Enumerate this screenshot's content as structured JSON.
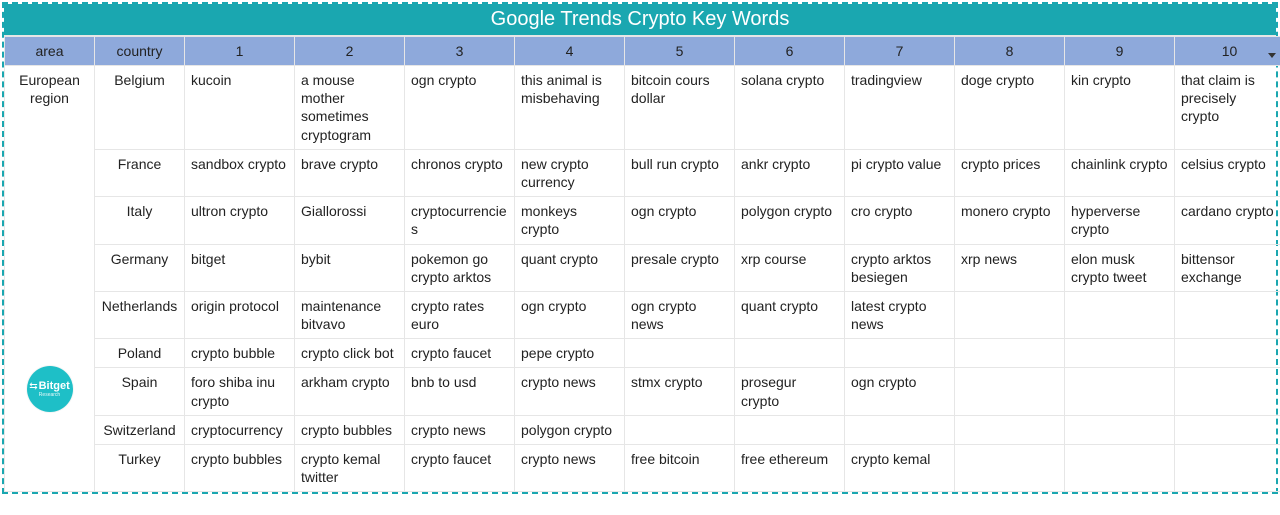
{
  "title": "Google Trends Crypto Key Words",
  "logo": {
    "brand": "Bitget",
    "sub": "Research"
  },
  "sorted_column_index": 11,
  "columns": [
    "area",
    "country",
    "1",
    "2",
    "3",
    "4",
    "5",
    "6",
    "7",
    "8",
    "9",
    "10"
  ],
  "area_label": "European region",
  "rows": [
    {
      "country": "Belgium",
      "kw": [
        "kucoin",
        "a mouse mother sometimes cryptogram",
        "ogn crypto",
        "this animal is misbehaving",
        "bitcoin cours dollar",
        "solana crypto",
        "tradingview",
        "doge crypto",
        "kin crypto",
        "that claim is precisely crypto"
      ]
    },
    {
      "country": "France",
      "kw": [
        "sandbox crypto",
        "brave crypto",
        "chronos crypto",
        "new crypto currency",
        "bull run crypto",
        "ankr crypto",
        "pi crypto value",
        "crypto prices",
        "chainlink crypto",
        "celsius crypto"
      ]
    },
    {
      "country": "Italy",
      "kw": [
        "ultron crypto",
        "Giallorossi",
        "cryptocurrencies",
        "monkeys crypto",
        "ogn crypto",
        "polygon crypto",
        "cro crypto",
        "monero crypto",
        "hyperverse crypto",
        "cardano crypto"
      ]
    },
    {
      "country": "Germany",
      "kw": [
        "bitget",
        "bybit",
        "pokemon go crypto arktos",
        "quant crypto",
        "presale crypto",
        "xrp course",
        "crypto arktos besiegen",
        "xrp news",
        "elon musk crypto tweet",
        "bittensor exchange"
      ]
    },
    {
      "country": "Netherlands",
      "kw": [
        "origin protocol",
        "maintenance bitvavo",
        "crypto rates euro",
        "ogn crypto",
        "ogn crypto news",
        "quant crypto",
        "latest crypto news",
        "",
        "",
        ""
      ]
    },
    {
      "country": "Poland",
      "kw": [
        "crypto bubble",
        "crypto click bot",
        "crypto faucet",
        "pepe crypto",
        "",
        "",
        "",
        "",
        "",
        ""
      ]
    },
    {
      "country": "Spain",
      "kw": [
        "foro shiba inu crypto",
        "arkham crypto",
        "bnb to usd",
        "crypto news",
        "stmx crypto",
        "prosegur crypto",
        "ogn crypto",
        "",
        "",
        ""
      ]
    },
    {
      "country": "Switzerland",
      "kw": [
        "cryptocurrency",
        "crypto bubbles",
        "crypto news",
        "polygon crypto",
        "",
        "",
        "",
        "",
        "",
        ""
      ]
    },
    {
      "country": "Turkey",
      "kw": [
        "crypto bubbles",
        "crypto kemal twitter",
        "crypto faucet",
        "crypto news",
        "free bitcoin",
        "free ethereum",
        "crypto kemal",
        "",
        "",
        ""
      ]
    }
  ],
  "colors": {
    "accent": "#1aa7b0",
    "header_bg": "#8ea9db",
    "border": "#e6e6e6",
    "logo_bg": "#1ebfc7"
  }
}
